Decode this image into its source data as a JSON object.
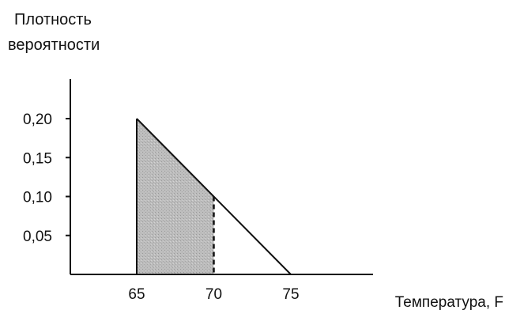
{
  "chart_data": {
    "type": "area",
    "ylabel_lines": [
      "Плотность",
      "вероятности"
    ],
    "xlabel": "Температура, F",
    "y_ticks": [
      {
        "value": 0.2,
        "label": "0,20"
      },
      {
        "value": 0.15,
        "label": "0,15"
      },
      {
        "value": 0.1,
        "label": "0,10"
      },
      {
        "value": 0.05,
        "label": "0,05"
      }
    ],
    "x_ticks": [
      {
        "value": 65,
        "label": "65"
      },
      {
        "value": 70,
        "label": "70"
      },
      {
        "value": 75,
        "label": "75"
      }
    ],
    "density_line": {
      "x": [
        65,
        75
      ],
      "y": [
        0.2,
        0.0
      ]
    },
    "shaded_region": {
      "x_from": 65,
      "x_to": 70
    },
    "dashed_line_at_x": 70,
    "xlim": [
      61,
      85
    ],
    "ylim": [
      0,
      0.25
    ],
    "colors": {
      "line": "#111111",
      "shade": "#b9b9b9"
    }
  }
}
